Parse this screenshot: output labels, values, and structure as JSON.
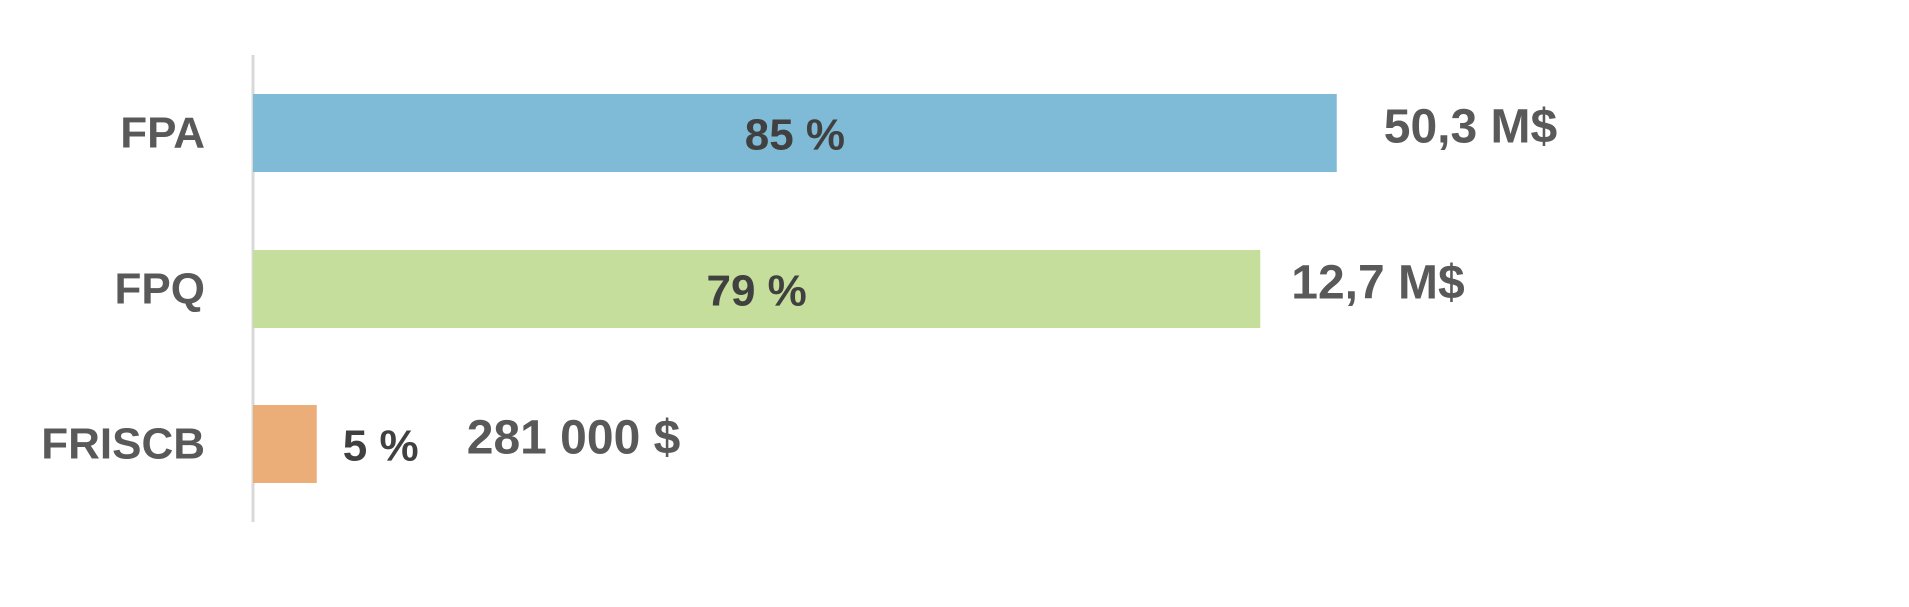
{
  "chart_data": {
    "type": "bar",
    "orientation": "horizontal",
    "title": "",
    "xlabel": "",
    "ylabel": "",
    "xlim": [
      0,
      100
    ],
    "grid": false,
    "legend": "none",
    "categories": [
      "FPA",
      "FPQ",
      "FRISCB"
    ],
    "values": [
      85,
      79,
      5
    ],
    "value_labels": [
      "85 %",
      "79 %",
      "5 %"
    ],
    "amount_labels": [
      "50,3 M$",
      "12,7 M$",
      "281 000 $"
    ],
    "colors": [
      "#7FBAD6",
      "#C5DE9B",
      "#EBAE78"
    ],
    "axis_color": "#D9D9D9"
  }
}
